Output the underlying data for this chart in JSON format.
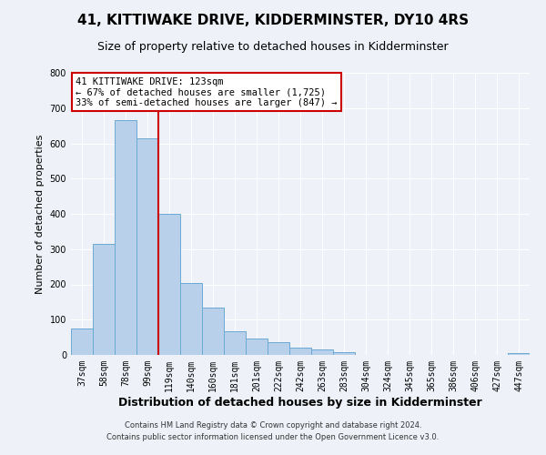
{
  "title": "41, KITTIWAKE DRIVE, KIDDERMINSTER, DY10 4RS",
  "subtitle": "Size of property relative to detached houses in Kidderminster",
  "xlabel": "Distribution of detached houses by size in Kidderminster",
  "ylabel": "Number of detached properties",
  "bar_labels": [
    "37sqm",
    "58sqm",
    "78sqm",
    "99sqm",
    "119sqm",
    "140sqm",
    "160sqm",
    "181sqm",
    "201sqm",
    "222sqm",
    "242sqm",
    "263sqm",
    "283sqm",
    "304sqm",
    "324sqm",
    "345sqm",
    "365sqm",
    "386sqm",
    "406sqm",
    "427sqm",
    "447sqm"
  ],
  "bar_heights": [
    75,
    315,
    665,
    615,
    400,
    205,
    135,
    68,
    47,
    36,
    20,
    15,
    8,
    1,
    0,
    0,
    0,
    0,
    0,
    0,
    5
  ],
  "bar_color": "#b8d0ea",
  "bar_edge_color": "#6aaad4",
  "vline_color": "#cc0000",
  "vline_position": 3.5,
  "ylim": [
    0,
    800
  ],
  "yticks": [
    0,
    100,
    200,
    300,
    400,
    500,
    600,
    700,
    800
  ],
  "annotation_title": "41 KITTIWAKE DRIVE: 123sqm",
  "annotation_line1": "← 67% of detached houses are smaller (1,725)",
  "annotation_line2": "33% of semi-detached houses are larger (847) →",
  "annotation_box_color": "#ffffff",
  "annotation_box_edge": "#cc0000",
  "footer_line1": "Contains HM Land Registry data © Crown copyright and database right 2024.",
  "footer_line2": "Contains public sector information licensed under the Open Government Licence v3.0.",
  "background_color": "#eef2f8",
  "grid_color": "#ffffff",
  "title_fontsize": 11,
  "subtitle_fontsize": 9,
  "xlabel_fontsize": 9,
  "ylabel_fontsize": 8,
  "tick_fontsize": 7,
  "ann_fontsize": 7.5,
  "footer_fontsize": 6
}
